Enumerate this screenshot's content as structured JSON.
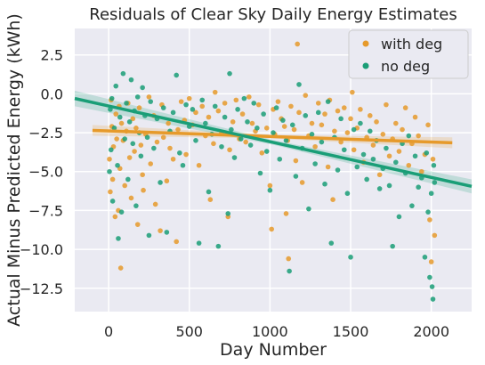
{
  "chart_data": {
    "type": "scatter",
    "title": "Residuals of Clear Sky Daily Energy Estimates",
    "xlabel": "Day Number",
    "ylabel": "Actual Minus Predicted Energy (kWh)",
    "xlim": [
      -210,
      2250
    ],
    "ylim": [
      -14.0,
      4.2
    ],
    "xticks": [
      0,
      500,
      1000,
      1500,
      2000
    ],
    "yticks": [
      2.5,
      0.0,
      -2.5,
      -5.0,
      -7.5,
      -10.0,
      -12.5
    ],
    "xtick_labels": [
      "0",
      "500",
      "1000",
      "1500",
      "2000"
    ],
    "ytick_labels": [
      "2.5",
      "0.0",
      "−2.5",
      "−5.0",
      "−7.5",
      "−10.0",
      "−12.5"
    ],
    "grid": true,
    "legend_position": "top-right",
    "series": [
      {
        "name": "with deg",
        "color": "#e69a2b",
        "fit": {
          "x": [
            -100,
            2130
          ],
          "y": [
            -2.35,
            -3.15
          ]
        },
        "band_halfwidth": [
          0.35,
          0.12,
          0.35
        ],
        "points": [
          [
            5,
            -4.2
          ],
          [
            10,
            -6.3
          ],
          [
            15,
            -0.4
          ],
          [
            20,
            -2.1
          ],
          [
            25,
            -5.5
          ],
          [
            30,
            -3.4
          ],
          [
            40,
            -7.9
          ],
          [
            45,
            -1.3
          ],
          [
            50,
            -2.9
          ],
          [
            60,
            -7.5
          ],
          [
            65,
            -0.8
          ],
          [
            70,
            -4.8
          ],
          [
            75,
            -11.2
          ],
          [
            80,
            -1.9
          ],
          [
            90,
            -3.0
          ],
          [
            100,
            -5.9
          ],
          [
            110,
            -2.4
          ],
          [
            120,
            -0.6
          ],
          [
            130,
            -4.1
          ],
          [
            140,
            -6.7
          ],
          [
            150,
            -1.6
          ],
          [
            160,
            -3.7
          ],
          [
            170,
            -2.2
          ],
          [
            180,
            -8.4
          ],
          [
            190,
            -0.9
          ],
          [
            200,
            -3.3
          ],
          [
            210,
            -5.2
          ],
          [
            215,
            -6.2
          ],
          [
            230,
            -2.6
          ],
          [
            250,
            -0.2
          ],
          [
            260,
            -4.5
          ],
          [
            280,
            -1.4
          ],
          [
            290,
            -7.1
          ],
          [
            300,
            -3.1
          ],
          [
            320,
            -8.8
          ],
          [
            330,
            -0.7
          ],
          [
            340,
            -2.8
          ],
          [
            360,
            -5.6
          ],
          [
            370,
            -1.9
          ],
          [
            380,
            -3.5
          ],
          [
            400,
            -4.2
          ],
          [
            420,
            -9.5
          ],
          [
            430,
            -2.3
          ],
          [
            450,
            -0.5
          ],
          [
            470,
            -1.7
          ],
          [
            480,
            -3.9
          ],
          [
            500,
            -0.3
          ],
          [
            520,
            -2.0
          ],
          [
            540,
            -1.2
          ],
          [
            560,
            -4.6
          ],
          [
            580,
            -0.8
          ],
          [
            600,
            -2.7
          ],
          [
            620,
            -1.5
          ],
          [
            630,
            -6.8
          ],
          [
            650,
            -3.2
          ],
          [
            660,
            0.1
          ],
          [
            680,
            -1.1
          ],
          [
            700,
            -2.5
          ],
          [
            720,
            -0.6
          ],
          [
            740,
            -7.9
          ],
          [
            750,
            -3.6
          ],
          [
            770,
            -1.8
          ],
          [
            790,
            -0.4
          ],
          [
            810,
            -2.9
          ],
          [
            830,
            -1.3
          ],
          [
            850,
            -3.1
          ],
          [
            870,
            -0.2
          ],
          [
            890,
            -1.9
          ],
          [
            910,
            -2.4
          ],
          [
            930,
            -0.7
          ],
          [
            950,
            -3.8
          ],
          [
            980,
            -2.2
          ],
          [
            1000,
            -5.9
          ],
          [
            1010,
            -8.7
          ],
          [
            1020,
            -1.0
          ],
          [
            1030,
            -2.6
          ],
          [
            1050,
            -0.5
          ],
          [
            1070,
            -1.6
          ],
          [
            1090,
            -2.1
          ],
          [
            1100,
            -7.7
          ],
          [
            1110,
            -3.0
          ],
          [
            1115,
            -10.6
          ],
          [
            1130,
            -0.8
          ],
          [
            1150,
            -2.3
          ],
          [
            1160,
            -4.3
          ],
          [
            1170,
            3.2
          ],
          [
            1180,
            -1.2
          ],
          [
            1200,
            -5.7
          ],
          [
            1220,
            -0.1
          ],
          [
            1240,
            -2.7
          ],
          [
            1260,
            -1.9
          ],
          [
            1280,
            -3.4
          ],
          [
            1300,
            -0.6
          ],
          [
            1320,
            -2.0
          ],
          [
            1340,
            -1.3
          ],
          [
            1360,
            -4.7
          ],
          [
            1370,
            -0.4
          ],
          [
            1390,
            -6.8
          ],
          [
            1400,
            -2.4
          ],
          [
            1420,
            -1.1
          ],
          [
            1440,
            -3.1
          ],
          [
            1460,
            -0.9
          ],
          [
            1480,
            -2.5
          ],
          [
            1500,
            -1.6
          ],
          [
            1510,
            0.1
          ],
          [
            1520,
            -3.6
          ],
          [
            1540,
            -2.2
          ],
          [
            1560,
            -1.0
          ],
          [
            1580,
            -4.4
          ],
          [
            1600,
            -2.8
          ],
          [
            1620,
            -1.4
          ],
          [
            1640,
            -3.3
          ],
          [
            1660,
            -1.8
          ],
          [
            1680,
            -5.2
          ],
          [
            1700,
            -2.6
          ],
          [
            1720,
            -0.7
          ],
          [
            1740,
            -4.0
          ],
          [
            1760,
            -2.9
          ],
          [
            1780,
            -1.9
          ],
          [
            1800,
            -3.7
          ],
          [
            1820,
            -2.3
          ],
          [
            1840,
            -0.9
          ],
          [
            1860,
            -4.6
          ],
          [
            1880,
            -3.2
          ],
          [
            1900,
            -1.5
          ],
          [
            1920,
            -2.7
          ],
          [
            1940,
            -5.0
          ],
          [
            1960,
            -3.9
          ],
          [
            1980,
            -2.0
          ],
          [
            1990,
            -8.1
          ],
          [
            2000,
            -10.8
          ],
          [
            2010,
            -4.2
          ],
          [
            2020,
            -9.1
          ]
        ]
      },
      {
        "name": "no deg",
        "color": "#1a9e77",
        "fit": {
          "x": [
            -210,
            2250
          ],
          "y": [
            -0.3,
            -5.95
          ]
        },
        "band_halfwidth": [
          0.5,
          0.15,
          0.45
        ],
        "points": [
          [
            5,
            -5.0
          ],
          [
            10,
            -1.0
          ],
          [
            15,
            -3.6
          ],
          [
            20,
            -0.3
          ],
          [
            25,
            -6.9
          ],
          [
            35,
            -2.2
          ],
          [
            45,
            0.5
          ],
          [
            55,
            -4.6
          ],
          [
            60,
            -9.3
          ],
          [
            70,
            -1.5
          ],
          [
            80,
            -7.6
          ],
          [
            90,
            1.3
          ],
          [
            100,
            -2.9
          ],
          [
            110,
            -0.6
          ],
          [
            120,
            -5.5
          ],
          [
            130,
            -1.8
          ],
          [
            140,
            0.9
          ],
          [
            150,
            -3.2
          ],
          [
            160,
            -1.1
          ],
          [
            170,
            -7.2
          ],
          [
            180,
            -0.2
          ],
          [
            190,
            -2.5
          ],
          [
            200,
            -4.0
          ],
          [
            210,
            0.4
          ],
          [
            225,
            -1.4
          ],
          [
            240,
            -2.8
          ],
          [
            250,
            -9.1
          ],
          [
            260,
            -0.5
          ],
          [
            280,
            -3.5
          ],
          [
            300,
            -1.6
          ],
          [
            320,
            -5.7
          ],
          [
            340,
            -0.9
          ],
          [
            360,
            -8.9
          ],
          [
            380,
            -2.4
          ],
          [
            400,
            -1.2
          ],
          [
            420,
            1.2
          ],
          [
            440,
            -3.8
          ],
          [
            460,
            -4.6
          ],
          [
            480,
            -0.7
          ],
          [
            500,
            -2.1
          ],
          [
            520,
            -1.0
          ],
          [
            540,
            -3.0
          ],
          [
            560,
            -9.6
          ],
          [
            580,
            -0.4
          ],
          [
            600,
            -1.9
          ],
          [
            620,
            -6.3
          ],
          [
            640,
            -2.6
          ],
          [
            660,
            -0.8
          ],
          [
            680,
            -9.8
          ],
          [
            700,
            -3.4
          ],
          [
            720,
            -1.5
          ],
          [
            740,
            -7.7
          ],
          [
            750,
            1.3
          ],
          [
            760,
            -2.3
          ],
          [
            780,
            -4.1
          ],
          [
            800,
            -1.0
          ],
          [
            820,
            -2.9
          ],
          [
            840,
            -0.3
          ],
          [
            860,
            -1.8
          ],
          [
            880,
            -3.3
          ],
          [
            900,
            -0.6
          ],
          [
            920,
            -2.2
          ],
          [
            940,
            -5.1
          ],
          [
            960,
            -1.3
          ],
          [
            980,
            -3.7
          ],
          [
            1000,
            -6.2
          ],
          [
            1020,
            -2.5
          ],
          [
            1040,
            -0.9
          ],
          [
            1060,
            -4.2
          ],
          [
            1080,
            -1.7
          ],
          [
            1100,
            -3.0
          ],
          [
            1120,
            -11.4
          ],
          [
            1140,
            -2.0
          ],
          [
            1160,
            -5.3
          ],
          [
            1180,
            0.6
          ],
          [
            1200,
            -3.5
          ],
          [
            1220,
            -1.4
          ],
          [
            1240,
            -7.4
          ],
          [
            1260,
            -2.6
          ],
          [
            1280,
            -4.5
          ],
          [
            1300,
            -1.2
          ],
          [
            1320,
            -3.1
          ],
          [
            1340,
            -5.8
          ],
          [
            1360,
            -0.5
          ],
          [
            1380,
            -9.6
          ],
          [
            1400,
            -2.8
          ],
          [
            1420,
            -4.9
          ],
          [
            1440,
            -1.6
          ],
          [
            1460,
            -3.6
          ],
          [
            1480,
            -6.4
          ],
          [
            1500,
            -10.5
          ],
          [
            1520,
            -2.3
          ],
          [
            1540,
            -4.7
          ],
          [
            1560,
            -1.9
          ],
          [
            1580,
            -3.9
          ],
          [
            1600,
            -5.5
          ],
          [
            1620,
            -2.4
          ],
          [
            1640,
            -4.2
          ],
          [
            1660,
            -3.0
          ],
          [
            1680,
            -6.1
          ],
          [
            1700,
            -4.8
          ],
          [
            1720,
            -3.5
          ],
          [
            1740,
            -5.9
          ],
          [
            1760,
            -9.8
          ],
          [
            1780,
            -4.4
          ],
          [
            1800,
            -7.9
          ],
          [
            1820,
            -3.2
          ],
          [
            1840,
            -5.1
          ],
          [
            1860,
            -2.7
          ],
          [
            1880,
            -7.2
          ],
          [
            1900,
            -4.0
          ],
          [
            1920,
            -6.0
          ],
          [
            1940,
            -5.4
          ],
          [
            1960,
            -10.5
          ],
          [
            1970,
            -3.8
          ],
          [
            1980,
            -7.6
          ],
          [
            1990,
            -11.8
          ],
          [
            2000,
            -6.4
          ],
          [
            2005,
            -12.4
          ],
          [
            2010,
            -13.2
          ],
          [
            2015,
            -4.6
          ],
          [
            2020,
            -5.7
          ]
        ]
      }
    ]
  }
}
